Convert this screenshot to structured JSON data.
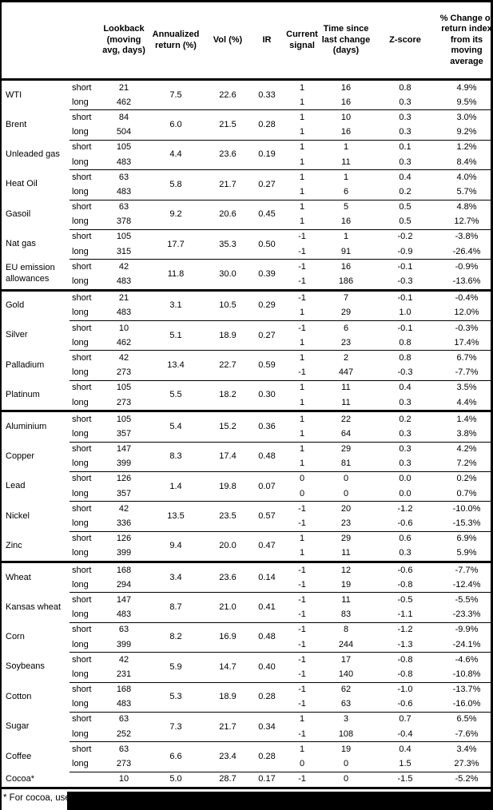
{
  "header": {
    "columns": [
      "",
      "",
      "Lookback\n(moving\navg, days)",
      "Annualized\nreturn (%)",
      "Vol (%)",
      "IR",
      "Current\nsignal",
      "Time since\nlast change\n(days)",
      "Z-score",
      "% Change of\nreturn index\nfrom its\nmoving\naverage"
    ]
  },
  "sections": [
    {
      "commodities": [
        {
          "name": "WTI",
          "annualized": "7.5",
          "vol": "22.6",
          "ir": "0.33",
          "rows": [
            {
              "label": "short",
              "lookback": "21",
              "signal": "1",
              "days": "16",
              "z": "0.8",
              "pct": "4.9%"
            },
            {
              "label": "long",
              "lookback": "462",
              "signal": "1",
              "days": "16",
              "z": "0.3",
              "pct": "9.5%"
            }
          ]
        },
        {
          "name": "Brent",
          "annualized": "6.0",
          "vol": "21.5",
          "ir": "0.28",
          "rows": [
            {
              "label": "short",
              "lookback": "84",
              "signal": "1",
              "days": "10",
              "z": "0.3",
              "pct": "3.0%"
            },
            {
              "label": "long",
              "lookback": "504",
              "signal": "1",
              "days": "16",
              "z": "0.3",
              "pct": "9.2%"
            }
          ]
        },
        {
          "name": "Unleaded gas",
          "annualized": "4.4",
          "vol": "23.6",
          "ir": "0.19",
          "rows": [
            {
              "label": "short",
              "lookback": "105",
              "signal": "1",
              "days": "1",
              "z": "0.1",
              "pct": "1.2%"
            },
            {
              "label": "long",
              "lookback": "483",
              "signal": "1",
              "days": "11",
              "z": "0.3",
              "pct": "8.4%"
            }
          ]
        },
        {
          "name": "Heat Oil",
          "annualized": "5.8",
          "vol": "21.7",
          "ir": "0.27",
          "rows": [
            {
              "label": "short",
              "lookback": "63",
              "signal": "1",
              "days": "1",
              "z": "0.4",
              "pct": "4.0%"
            },
            {
              "label": "long",
              "lookback": "483",
              "signal": "1",
              "days": "6",
              "z": "0.2",
              "pct": "5.7%"
            }
          ]
        },
        {
          "name": "Gasoil",
          "annualized": "9.2",
          "vol": "20.6",
          "ir": "0.45",
          "rows": [
            {
              "label": "short",
              "lookback": "63",
              "signal": "1",
              "days": "5",
              "z": "0.5",
              "pct": "4.8%"
            },
            {
              "label": "long",
              "lookback": "378",
              "signal": "1",
              "days": "16",
              "z": "0.5",
              "pct": "12.7%"
            }
          ]
        },
        {
          "name": "Nat gas",
          "annualized": "17.7",
          "vol": "35.3",
          "ir": "0.50",
          "rows": [
            {
              "label": "short",
              "lookback": "105",
              "signal": "-1",
              "days": "1",
              "z": "-0.2",
              "pct": "-3.8%"
            },
            {
              "label": "long",
              "lookback": "315",
              "signal": "-1",
              "days": "91",
              "z": "-0.9",
              "pct": "-26.4%"
            }
          ]
        },
        {
          "name": "EU emission allowances",
          "annualized": "11.8",
          "vol": "30.0",
          "ir": "0.39",
          "rows": [
            {
              "label": "short",
              "lookback": "42",
              "signal": "-1",
              "days": "16",
              "z": "-0.1",
              "pct": "-0.9%"
            },
            {
              "label": "long",
              "lookback": "483",
              "signal": "-1",
              "days": "186",
              "z": "-0.3",
              "pct": "-13.6%"
            }
          ]
        }
      ]
    },
    {
      "commodities": [
        {
          "name": "Gold",
          "annualized": "3.1",
          "vol": "10.5",
          "ir": "0.29",
          "rows": [
            {
              "label": "short",
              "lookback": "21",
              "signal": "-1",
              "days": "7",
              "z": "-0.1",
              "pct": "-0.4%"
            },
            {
              "label": "long",
              "lookback": "483",
              "signal": "1",
              "days": "29",
              "z": "1.0",
              "pct": "12.0%"
            }
          ]
        },
        {
          "name": "Silver",
          "annualized": "5.1",
          "vol": "18.9",
          "ir": "0.27",
          "rows": [
            {
              "label": "short",
              "lookback": "10",
              "signal": "-1",
              "days": "6",
              "z": "-0.1",
              "pct": "-0.3%"
            },
            {
              "label": "long",
              "lookback": "462",
              "signal": "1",
              "days": "23",
              "z": "0.8",
              "pct": "17.4%"
            }
          ]
        },
        {
          "name": "Palladium",
          "annualized": "13.4",
          "vol": "22.7",
          "ir": "0.59",
          "rows": [
            {
              "label": "short",
              "lookback": "42",
              "signal": "1",
              "days": "2",
              "z": "0.8",
              "pct": "6.7%"
            },
            {
              "label": "long",
              "lookback": "273",
              "signal": "-1",
              "days": "447",
              "z": "-0.3",
              "pct": "-7.7%"
            }
          ]
        },
        {
          "name": "Platinum",
          "annualized": "5.5",
          "vol": "18.2",
          "ir": "0.30",
          "rows": [
            {
              "label": "short",
              "lookback": "105",
              "signal": "1",
              "days": "11",
              "z": "0.4",
              "pct": "3.5%"
            },
            {
              "label": "long",
              "lookback": "273",
              "signal": "1",
              "days": "11",
              "z": "0.3",
              "pct": "4.4%"
            }
          ]
        }
      ]
    },
    {
      "commodities": [
        {
          "name": "Aluminium",
          "annualized": "5.4",
          "vol": "15.2",
          "ir": "0.36",
          "rows": [
            {
              "label": "short",
              "lookback": "105",
              "signal": "1",
              "days": "22",
              "z": "0.2",
              "pct": "1.4%"
            },
            {
              "label": "long",
              "lookback": "357",
              "signal": "1",
              "days": "64",
              "z": "0.3",
              "pct": "3.8%"
            }
          ]
        },
        {
          "name": "Copper",
          "annualized": "8.3",
          "vol": "17.4",
          "ir": "0.48",
          "rows": [
            {
              "label": "short",
              "lookback": "147",
              "signal": "1",
              "days": "29",
              "z": "0.3",
              "pct": "4.2%"
            },
            {
              "label": "long",
              "lookback": "399",
              "signal": "1",
              "days": "81",
              "z": "0.3",
              "pct": "7.2%"
            }
          ]
        },
        {
          "name": "Lead",
          "annualized": "1.4",
          "vol": "19.8",
          "ir": "0.07",
          "rows": [
            {
              "label": "short",
              "lookback": "126",
              "signal": "0",
              "days": "0",
              "z": "0.0",
              "pct": "0.2%"
            },
            {
              "label": "long",
              "lookback": "357",
              "signal": "0",
              "days": "0",
              "z": "0.0",
              "pct": "0.7%"
            }
          ]
        },
        {
          "name": "Nickel",
          "annualized": "13.5",
          "vol": "23.5",
          "ir": "0.57",
          "rows": [
            {
              "label": "short",
              "lookback": "42",
              "signal": "-1",
              "days": "20",
              "z": "-1.2",
              "pct": "-10.0%"
            },
            {
              "label": "long",
              "lookback": "336",
              "signal": "-1",
              "days": "23",
              "z": "-0.6",
              "pct": "-15.3%"
            }
          ]
        },
        {
          "name": "Zinc",
          "annualized": "9.4",
          "vol": "20.0",
          "ir": "0.47",
          "rows": [
            {
              "label": "short",
              "lookback": "126",
              "signal": "1",
              "days": "29",
              "z": "0.6",
              "pct": "6.9%"
            },
            {
              "label": "long",
              "lookback": "399",
              "signal": "1",
              "days": "11",
              "z": "0.3",
              "pct": "5.9%"
            }
          ]
        }
      ]
    },
    {
      "commodities": [
        {
          "name": "Wheat",
          "annualized": "3.4",
          "vol": "23.6",
          "ir": "0.14",
          "rows": [
            {
              "label": "short",
              "lookback": "168",
              "signal": "-1",
              "days": "12",
              "z": "-0.6",
              "pct": "-7.7%"
            },
            {
              "label": "long",
              "lookback": "294",
              "signal": "-1",
              "days": "19",
              "z": "-0.8",
              "pct": "-12.4%"
            }
          ]
        },
        {
          "name": "Kansas wheat",
          "annualized": "8.7",
          "vol": "21.0",
          "ir": "0.41",
          "rows": [
            {
              "label": "short",
              "lookback": "147",
              "signal": "-1",
              "days": "11",
              "z": "-0.5",
              "pct": "-5.5%"
            },
            {
              "label": "long",
              "lookback": "483",
              "signal": "-1",
              "days": "83",
              "z": "-1.1",
              "pct": "-23.3%"
            }
          ]
        },
        {
          "name": "Corn",
          "annualized": "8.2",
          "vol": "16.9",
          "ir": "0.48",
          "rows": [
            {
              "label": "short",
              "lookback": "63",
              "signal": "-1",
              "days": "8",
              "z": "-1.2",
              "pct": "-9.9%"
            },
            {
              "label": "long",
              "lookback": "399",
              "signal": "-1",
              "days": "244",
              "z": "-1.3",
              "pct": "-24.1%"
            }
          ]
        },
        {
          "name": "Soybeans",
          "annualized": "5.9",
          "vol": "14.7",
          "ir": "0.40",
          "rows": [
            {
              "label": "short",
              "lookback": "42",
              "signal": "-1",
              "days": "17",
              "z": "-0.8",
              "pct": "-4.6%"
            },
            {
              "label": "long",
              "lookback": "231",
              "signal": "-1",
              "days": "140",
              "z": "-0.8",
              "pct": "-10.8%"
            }
          ]
        },
        {
          "name": "Cotton",
          "annualized": "5.3",
          "vol": "18.9",
          "ir": "0.28",
          "rows": [
            {
              "label": "short",
              "lookback": "168",
              "signal": "-1",
              "days": "62",
              "z": "-1.0",
              "pct": "-13.7%"
            },
            {
              "label": "long",
              "lookback": "483",
              "signal": "-1",
              "days": "63",
              "z": "-0.6",
              "pct": "-16.0%"
            }
          ]
        },
        {
          "name": "Sugar",
          "annualized": "7.3",
          "vol": "21.7",
          "ir": "0.34",
          "rows": [
            {
              "label": "short",
              "lookback": "63",
              "signal": "1",
              "days": "3",
              "z": "0.7",
              "pct": "6.5%"
            },
            {
              "label": "long",
              "lookback": "252",
              "signal": "-1",
              "days": "108",
              "z": "-0.4",
              "pct": "-7.6%"
            }
          ]
        },
        {
          "name": "Coffee",
          "annualized": "6.6",
          "vol": "23.4",
          "ir": "0.28",
          "rows": [
            {
              "label": "short",
              "lookback": "63",
              "signal": "1",
              "days": "19",
              "z": "0.4",
              "pct": "3.4%"
            },
            {
              "label": "long",
              "lookback": "273",
              "signal": "0",
              "days": "0",
              "z": "1.5",
              "pct": "27.3%"
            }
          ]
        },
        {
          "name": "Cocoa*",
          "annualized": "5.0",
          "vol": "28.7",
          "ir": "0.17",
          "rows": [
            {
              "label": "",
              "lookback": "10",
              "signal": "-1",
              "days": "0",
              "z": "-1.5",
              "pct": "-5.2%"
            }
          ]
        }
      ]
    }
  ],
  "footnote": "* For cocoa, uses o",
  "colors": {
    "text": "#000000",
    "background": "#ffffff",
    "border": "#000000",
    "redaction": "#000000"
  }
}
